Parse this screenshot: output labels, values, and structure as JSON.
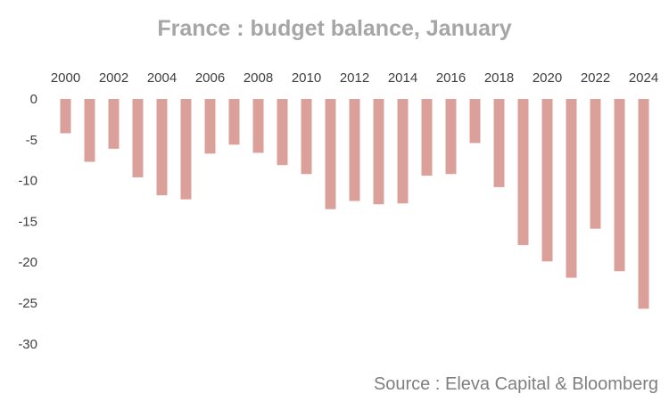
{
  "chart_data": {
    "type": "bar",
    "title": "France : budget balance, January",
    "source": "Source : Eleva Capital & Bloomberg",
    "categories": [
      "2000",
      "2001",
      "2002",
      "2003",
      "2004",
      "2005",
      "2006",
      "2007",
      "2008",
      "2009",
      "2010",
      "2011",
      "2012",
      "2013",
      "2014",
      "2015",
      "2016",
      "2017",
      "2018",
      "2019",
      "2020",
      "2021",
      "2022",
      "2023",
      "2024"
    ],
    "x_tick_labels": [
      "2000",
      "2002",
      "2004",
      "2006",
      "2008",
      "2010",
      "2012",
      "2014",
      "2016",
      "2018",
      "2020",
      "2022",
      "2024"
    ],
    "values": [
      -4.2,
      -7.7,
      -6.1,
      -9.6,
      -11.8,
      -12.3,
      -6.7,
      -5.6,
      -6.6,
      -8.1,
      -9.2,
      -13.5,
      -12.5,
      -12.9,
      -12.8,
      -9.4,
      -9.2,
      -5.4,
      -10.8,
      -17.9,
      -19.9,
      -21.9,
      -15.9,
      -21.1,
      -25.7
    ],
    "ylim": [
      -30,
      0
    ],
    "y_ticks": [
      0,
      -5,
      -10,
      -15,
      -20,
      -25,
      -30
    ],
    "xlabel": "",
    "ylabel": "",
    "x_axis_position": "top",
    "grid": false,
    "legend": "none",
    "bar_color": "#dca09a"
  }
}
